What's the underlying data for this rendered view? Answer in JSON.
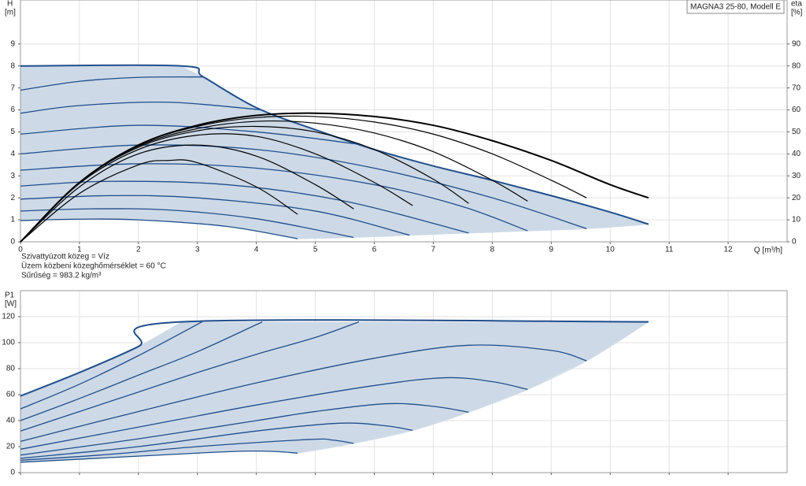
{
  "chart_data": [
    {
      "type": "line",
      "label": "MAGNA3 25-80, Modell E",
      "ylabel": "H",
      "yunit": "[m]",
      "y2label": "eta",
      "y2unit": "[%]",
      "xlabel": "Q [m³/h]",
      "xlim": [
        0,
        13
      ],
      "xticks": [
        0,
        1,
        2,
        3,
        4,
        5,
        6,
        7,
        8,
        9,
        10,
        11,
        12
      ],
      "ylim": [
        0,
        11
      ],
      "yticks": [
        0,
        1,
        2,
        3,
        4,
        5,
        6,
        7,
        8,
        9
      ],
      "y2lim": [
        0,
        110
      ],
      "y2ticks": [
        0,
        10,
        20,
        30,
        40,
        50,
        60,
        70,
        80,
        90
      ],
      "grid": true,
      "fill_color": "#cdd9e6",
      "lower_bound": {
        "x": [
          4.7,
          5.65,
          6.6,
          7.6,
          8.6,
          9.6,
          10.65
        ],
        "values": [
          0.14,
          0.2,
          0.3,
          0.4,
          0.5,
          0.6,
          0.8
        ]
      },
      "series": [
        {
          "color": "#1f4e8c",
          "width": 2,
          "x": [
            0,
            2.73,
            3.1,
            4,
            5,
            6,
            7,
            8,
            9,
            10,
            10.65
          ],
          "values": [
            8,
            8,
            7.5,
            6.1,
            5.1,
            4.2,
            3.45,
            2.8,
            2.1,
            1.35,
            0.8
          ]
        },
        {
          "color": "#1f4e8c",
          "width": 1.3,
          "x": [
            0,
            1,
            2,
            3.1
          ],
          "values": [
            6.9,
            7.3,
            7.48,
            7.5
          ]
        },
        {
          "color": "#1f4e8c",
          "width": 1.3,
          "x": [
            0,
            1,
            2.5,
            4.1
          ],
          "values": [
            5.85,
            6.2,
            6.35,
            6.0
          ]
        },
        {
          "color": "#1f4e8c",
          "width": 1.3,
          "x": [
            0,
            2,
            4,
            5.7
          ],
          "values": [
            4.9,
            5.3,
            5.0,
            4.45
          ]
        },
        {
          "color": "#1f4e8c",
          "width": 1.3,
          "x": [
            0,
            2,
            4,
            6,
            8,
            9.6
          ],
          "values": [
            4.0,
            4.4,
            4.2,
            3.35,
            2.0,
            0.6
          ]
        },
        {
          "color": "#1f4e8c",
          "width": 1.3,
          "x": [
            0,
            2,
            4,
            6,
            7.5,
            8.6
          ],
          "values": [
            3.26,
            3.55,
            3.35,
            2.6,
            1.6,
            0.5
          ]
        },
        {
          "color": "#1f4e8c",
          "width": 1.3,
          "x": [
            0,
            1.5,
            3.5,
            5.5,
            7.6
          ],
          "values": [
            2.54,
            2.75,
            2.6,
            1.85,
            0.4
          ]
        },
        {
          "color": "#1f4e8c",
          "width": 1.3,
          "x": [
            0,
            1.5,
            3,
            5,
            6.6
          ],
          "values": [
            1.94,
            2.1,
            2.0,
            1.4,
            0.3
          ]
        },
        {
          "color": "#1f4e8c",
          "width": 1.3,
          "x": [
            0,
            1.2,
            2.5,
            4,
            5.65
          ],
          "values": [
            1.4,
            1.5,
            1.45,
            1.05,
            0.2
          ]
        },
        {
          "color": "#1f4e8c",
          "width": 1.3,
          "x": [
            0,
            1,
            2,
            3.5,
            4.7
          ],
          "values": [
            0.97,
            1.03,
            1.0,
            0.7,
            0.14
          ]
        },
        {
          "color": "#000000",
          "width": 2,
          "axis": "y2",
          "x": [
            0,
            1,
            2,
            3,
            4,
            5,
            6,
            7,
            8,
            9,
            10,
            10.65
          ],
          "values": [
            0,
            27,
            44,
            53,
            57.5,
            58.5,
            57,
            53,
            46,
            37,
            26,
            20
          ]
        },
        {
          "color": "#000000",
          "width": 1.2,
          "axis": "y2",
          "x": [
            0,
            1,
            2,
            3,
            4,
            5,
            6,
            7,
            8,
            9,
            9.6
          ],
          "values": [
            0,
            27,
            44,
            52.5,
            56.5,
            57,
            54.5,
            49,
            40,
            28,
            20
          ]
        },
        {
          "color": "#000000",
          "width": 1.2,
          "axis": "y2",
          "x": [
            0,
            1,
            2,
            3,
            4,
            5,
            6,
            7,
            8,
            8.6
          ],
          "values": [
            0,
            27,
            43.5,
            51.5,
            54.8,
            54,
            49.5,
            41,
            28,
            18.5
          ]
        },
        {
          "color": "#000000",
          "width": 1.2,
          "axis": "y2",
          "x": [
            0,
            1,
            2,
            3,
            4,
            5,
            6,
            7,
            7.6
          ],
          "values": [
            0,
            27,
            43,
            50.5,
            52.5,
            50,
            42,
            28.5,
            17.5
          ]
        },
        {
          "color": "#000000",
          "width": 1.2,
          "axis": "y2",
          "x": [
            0,
            1,
            2,
            3,
            4,
            5,
            6,
            6.65
          ],
          "values": [
            0,
            26.5,
            42,
            48.5,
            48,
            40,
            27,
            16.5
          ]
        },
        {
          "color": "#000000",
          "width": 1.2,
          "axis": "y2",
          "x": [
            0,
            1,
            2,
            3,
            4,
            5,
            5.65
          ],
          "values": [
            0,
            25,
            40,
            44,
            39,
            26,
            15
          ]
        },
        {
          "color": "#000000",
          "width": 1.2,
          "axis": "y2",
          "x": [
            0,
            1,
            2,
            2.5,
            3,
            4,
            4.7
          ],
          "values": [
            0,
            22,
            35,
            37,
            36,
            25,
            12.5
          ]
        }
      ],
      "notes": [
        "Szivattyúzott közeg = Víz",
        "Üzem közbeni közeghőmérséklet = 60 °C",
        "Sűrűség = 983.2 kg/m³"
      ]
    },
    {
      "type": "line",
      "ylabel": "P1",
      "yunit": "[W]",
      "xlim": [
        0,
        13
      ],
      "xticks": [
        0,
        1,
        2,
        3,
        4,
        5,
        6,
        7,
        8,
        9,
        10,
        11,
        12
      ],
      "xtick_labels": false,
      "ylim": [
        0,
        140
      ],
      "yticks": [
        0,
        20,
        40,
        60,
        80,
        100,
        120
      ],
      "grid": true,
      "fill_color": "#cdd9e6",
      "lower_bound": {
        "x": [
          4.7,
          5.65,
          6.65,
          7.6,
          8.6,
          9.6,
          10.65
        ],
        "values": [
          15,
          22.5,
          32.5,
          46.5,
          64,
          86,
          116
        ]
      },
      "series": [
        {
          "color": "#1f4e8c",
          "width": 2,
          "x": [
            0,
            1,
            2,
            2.73,
            10.65
          ],
          "values": [
            59,
            77,
            97,
            116,
            116
          ]
        },
        {
          "color": "#1f4e8c",
          "width": 1.3,
          "x": [
            0,
            1,
            2,
            3.08
          ],
          "values": [
            49,
            68,
            90,
            116
          ]
        },
        {
          "color": "#1f4e8c",
          "width": 1.3,
          "x": [
            0,
            1,
            2,
            3,
            4.1
          ],
          "values": [
            40,
            57,
            75,
            93,
            116
          ]
        },
        {
          "color": "#1f4e8c",
          "width": 1.3,
          "x": [
            0,
            1,
            2,
            3,
            4,
            5,
            5.74
          ],
          "values": [
            32,
            47,
            62,
            77,
            91,
            104,
            116
          ]
        },
        {
          "color": "#1f4e8c",
          "width": 1.3,
          "x": [
            0,
            2,
            4,
            6,
            7.6,
            9,
            9.6
          ],
          "values": [
            24,
            47,
            69,
            88,
            98,
            94,
            86
          ]
        },
        {
          "color": "#1f4e8c",
          "width": 1.3,
          "x": [
            0,
            2,
            4,
            6,
            7.2,
            8,
            8.6
          ],
          "values": [
            18,
            35,
            52,
            67,
            73,
            70,
            64
          ]
        },
        {
          "color": "#1f4e8c",
          "width": 1.3,
          "x": [
            0,
            2,
            4,
            5,
            6.2,
            7,
            7.6
          ],
          "values": [
            13.5,
            26,
            40,
            47,
            53,
            51,
            46.5
          ]
        },
        {
          "color": "#1f4e8c",
          "width": 1.3,
          "x": [
            0,
            2,
            4,
            5.4,
            6.2,
            6.65
          ],
          "values": [
            11,
            20,
            32,
            38,
            36,
            32.5
          ]
        },
        {
          "color": "#1f4e8c",
          "width": 1.3,
          "x": [
            0,
            1.5,
            3,
            4.9,
            5.3,
            5.65
          ],
          "values": [
            9.5,
            14,
            20,
            25.5,
            25,
            22.5
          ]
        },
        {
          "color": "#1f4e8c",
          "width": 1.3,
          "x": [
            0,
            1.5,
            3,
            3.8,
            4.3,
            4.7
          ],
          "values": [
            8,
            11.5,
            15,
            16.5,
            16.3,
            15
          ]
        }
      ]
    }
  ]
}
